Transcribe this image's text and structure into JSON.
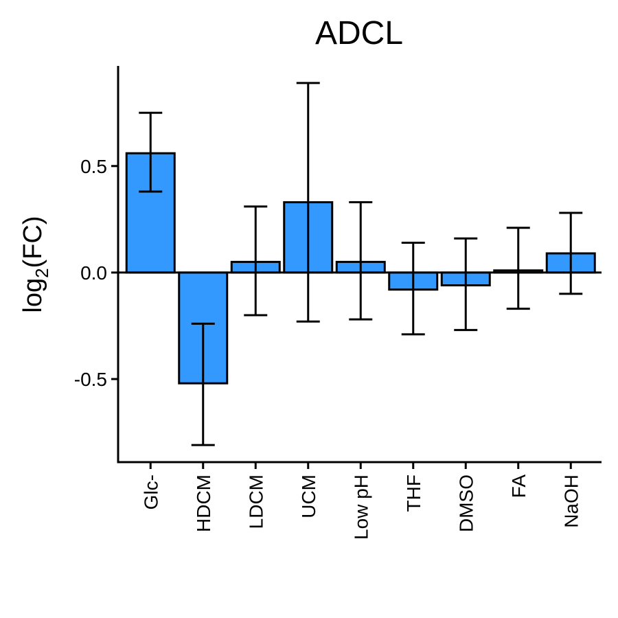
{
  "chart_data": {
    "type": "bar",
    "title": "ADCL",
    "ylabel_main": "log",
    "ylabel_sub": "2",
    "ylabel_tail": "(FC)",
    "categories": [
      "Glc-",
      "HDCM",
      "LDCM",
      "UCM",
      "Low pH",
      "THF",
      "DMSO",
      "FA",
      "NaOH"
    ],
    "values": [
      0.56,
      -0.52,
      0.05,
      0.33,
      0.05,
      -0.08,
      -0.06,
      0.01,
      0.09
    ],
    "error_low": [
      0.38,
      -0.81,
      -0.2,
      -0.23,
      -0.22,
      -0.29,
      -0.27,
      -0.17,
      -0.1
    ],
    "error_high": [
      0.75,
      -0.24,
      0.31,
      0.89,
      0.33,
      0.14,
      0.16,
      0.21,
      0.28
    ],
    "yticks": [
      0.5,
      0.0,
      -0.5
    ],
    "ytick_labels": [
      "0.5",
      "0.0",
      "-0.5"
    ],
    "ylim": [
      -0.89,
      0.97
    ],
    "bar_color": "#3399ff",
    "grid": false,
    "legend": "none"
  }
}
